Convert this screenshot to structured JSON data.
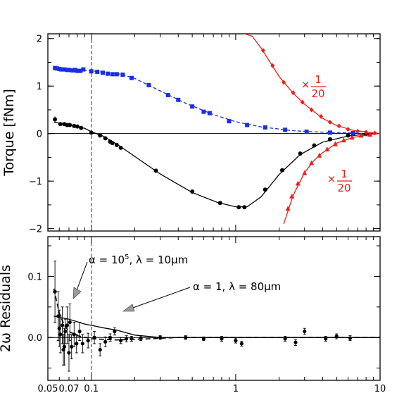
{
  "colors": {
    "black": "#000000",
    "blue": "#1a2fe0",
    "red": "#e8201a",
    "arrow": "#9a9a9a"
  },
  "chart_data": [
    {
      "type": "scatter",
      "panel": "top",
      "xscale": "log",
      "xlim": [
        0.05,
        10
      ],
      "ylim": [
        -2.05,
        2.1
      ],
      "ylabel": "Torque [fNm]",
      "yticks": [
        {
          "v": -2,
          "label": "−2"
        },
        {
          "v": -1,
          "label": "−1"
        },
        {
          "v": 0,
          "label": "0"
        },
        {
          "v": 1,
          "label": "1"
        },
        {
          "v": 2,
          "label": "2"
        }
      ],
      "vline": 0.1,
      "hline": 0,
      "grid": false,
      "scale_annotations": [
        {
          "prefix": "×",
          "num": "1",
          "den": "20",
          "near": "upper red series"
        },
        {
          "prefix": "×",
          "num": "1",
          "den": "20",
          "near": "lower red series"
        }
      ],
      "series": [
        {
          "color": "blue",
          "marker": "square",
          "line": "dashed",
          "points": [
            [
              0.056,
              1.38
            ],
            [
              0.058,
              1.37
            ],
            [
              0.06,
              1.36
            ],
            [
              0.062,
              1.35
            ],
            [
              0.065,
              1.35
            ],
            [
              0.068,
              1.34
            ],
            [
              0.07,
              1.34
            ],
            [
              0.074,
              1.33
            ],
            [
              0.077,
              1.34
            ],
            [
              0.08,
              1.32
            ],
            [
              0.084,
              1.32
            ],
            [
              0.088,
              1.35
            ],
            [
              0.1,
              1.31
            ],
            [
              0.11,
              1.3
            ],
            [
              0.12,
              1.28
            ],
            [
              0.13,
              1.26
            ],
            [
              0.14,
              1.25
            ],
            [
              0.15,
              1.25
            ],
            [
              0.165,
              1.24
            ],
            [
              0.19,
              1.17
            ],
            [
              0.25,
              1.02
            ],
            [
              0.34,
              0.81
            ],
            [
              0.4,
              0.71
            ],
            [
              0.5,
              0.57
            ],
            [
              0.6,
              0.46
            ],
            [
              0.66,
              0.43
            ],
            [
              0.9,
              0.26
            ],
            [
              1.2,
              0.18
            ],
            [
              1.6,
              0.13
            ],
            [
              2.2,
              0.08
            ],
            [
              3.1,
              0.04
            ],
            [
              4.5,
              0.02
            ],
            [
              6.5,
              0.01
            ]
          ],
          "fit": [
            [
              0.056,
              1.38
            ],
            [
              0.1,
              1.32
            ],
            [
              0.16,
              1.25
            ],
            [
              0.2,
              1.16
            ],
            [
              0.3,
              0.9
            ],
            [
              0.45,
              0.64
            ],
            [
              0.7,
              0.4
            ],
            [
              1.0,
              0.25
            ],
            [
              1.5,
              0.14
            ],
            [
              2.5,
              0.06
            ],
            [
              4,
              0.03
            ],
            [
              7,
              0.01
            ]
          ]
        },
        {
          "color": "black",
          "marker": "circle",
          "line": "solid",
          "points": [
            [
              0.056,
              0.3
            ],
            [
              0.061,
              0.2
            ],
            [
              0.065,
              0.2
            ],
            [
              0.068,
              0.18
            ],
            [
              0.071,
              0.18
            ],
            [
              0.076,
              0.16
            ],
            [
              0.08,
              0.15
            ],
            [
              0.085,
              0.12
            ],
            [
              0.1,
              0.02
            ],
            [
              0.115,
              -0.04
            ],
            [
              0.125,
              -0.1
            ],
            [
              0.135,
              -0.17
            ],
            [
              0.14,
              -0.2
            ],
            [
              0.15,
              -0.24
            ],
            [
              0.16,
              -0.3
            ],
            [
              0.28,
              -0.78
            ],
            [
              0.5,
              -1.22
            ],
            [
              0.78,
              -1.46
            ],
            [
              1.05,
              -1.55
            ],
            [
              1.15,
              -1.55
            ],
            [
              1.6,
              -1.18
            ],
            [
              2.1,
              -0.77
            ],
            [
              2.8,
              -0.42
            ],
            [
              3.5,
              -0.25
            ],
            [
              4.5,
              -0.12
            ],
            [
              6,
              -0.04
            ],
            [
              8,
              -0.01
            ]
          ],
          "fit": [
            [
              0.055,
              0.24
            ],
            [
              0.07,
              0.19
            ],
            [
              0.09,
              0.11
            ],
            [
              0.1,
              0.04
            ],
            [
              0.12,
              -0.05
            ],
            [
              0.15,
              -0.22
            ],
            [
              0.2,
              -0.48
            ],
            [
              0.3,
              -0.85
            ],
            [
              0.5,
              -1.24
            ],
            [
              0.75,
              -1.45
            ],
            [
              1.0,
              -1.54
            ],
            [
              1.2,
              -1.54
            ],
            [
              1.5,
              -1.33
            ],
            [
              2.0,
              -0.86
            ],
            [
              2.8,
              -0.44
            ],
            [
              4,
              -0.18
            ],
            [
              6,
              -0.05
            ],
            [
              9,
              0
            ]
          ]
        },
        {
          "color": "red",
          "marker": "diamond",
          "line": "solid",
          "points": [
            [
              1.55,
              1.75
            ],
            [
              1.8,
              1.43
            ],
            [
              2.15,
              1.08
            ],
            [
              2.5,
              0.86
            ],
            [
              2.9,
              0.66
            ],
            [
              3.35,
              0.5
            ],
            [
              3.9,
              0.36
            ],
            [
              4.5,
              0.24
            ],
            [
              5.2,
              0.16
            ],
            [
              6.0,
              0.09
            ],
            [
              7.0,
              0.05
            ],
            [
              8.0,
              0.03
            ],
            [
              9.2,
              0.01
            ]
          ],
          "fit": [
            [
              1.1,
              2.12
            ],
            [
              1.3,
              2.05
            ],
            [
              1.5,
              1.8
            ],
            [
              2.0,
              1.2
            ],
            [
              2.5,
              0.85
            ],
            [
              3.0,
              0.62
            ],
            [
              4.0,
              0.32
            ],
            [
              5.0,
              0.17
            ],
            [
              6.5,
              0.07
            ],
            [
              10,
              0
            ]
          ]
        },
        {
          "color": "red",
          "marker": "triangle",
          "line": "solid",
          "points": [
            [
              2.3,
              -1.58
            ],
            [
              2.45,
              -1.32
            ],
            [
              2.7,
              -1.05
            ],
            [
              3.0,
              -0.83
            ],
            [
              3.35,
              -0.62
            ],
            [
              3.8,
              -0.46
            ],
            [
              4.3,
              -0.33
            ],
            [
              4.9,
              -0.22
            ],
            [
              5.6,
              -0.14
            ],
            [
              6.4,
              -0.08
            ],
            [
              7.4,
              -0.04
            ],
            [
              8.5,
              -0.02
            ]
          ],
          "fit": [
            [
              2.15,
              -1.9
            ],
            [
              2.5,
              -1.3
            ],
            [
              3.0,
              -0.82
            ],
            [
              3.5,
              -0.56
            ],
            [
              4.0,
              -0.4
            ],
            [
              5.0,
              -0.2
            ],
            [
              6.5,
              -0.08
            ],
            [
              8.5,
              -0.02
            ],
            [
              10,
              0
            ]
          ]
        }
      ]
    },
    {
      "type": "scatter",
      "panel": "bottom",
      "xscale": "log",
      "xlim": [
        0.05,
        10
      ],
      "ylim": [
        -0.07,
        0.165
      ],
      "xticks": [
        {
          "v": 0.05,
          "label": "0.05"
        },
        {
          "v": 0.07,
          "label": "0.07"
        },
        {
          "v": 0.1,
          "label": "0.1"
        },
        {
          "v": 1,
          "label": "1"
        },
        {
          "v": 10,
          "label": "10"
        }
      ],
      "yticks": [
        {
          "v": 0.0,
          "label": "0.0"
        },
        {
          "v": 0.1,
          "label": "0.1"
        }
      ],
      "ylabel_visible": "2ω Residuals",
      "vline": 0.1,
      "hline": 0,
      "annotations": [
        {
          "text": "α = 10",
          "sup": "5",
          "rest": ",  λ = 10µm",
          "curve": "dashed"
        },
        {
          "text": "α = 1,  λ = 80µm",
          "curve": "solid"
        }
      ],
      "points": [
        [
          0.056,
          0.075,
          0.05
        ],
        [
          0.059,
          0.035,
          0.04
        ],
        [
          0.06,
          0.015,
          0.03
        ],
        [
          0.061,
          0.005,
          0.03
        ],
        [
          0.063,
          0.02,
          0.03
        ],
        [
          0.064,
          -0.02,
          0.025
        ],
        [
          0.065,
          -0.015,
          0.03
        ],
        [
          0.066,
          0.01,
          0.02
        ],
        [
          0.068,
          0.02,
          0.03
        ],
        [
          0.07,
          -0.025,
          0.03
        ],
        [
          0.071,
          0.025,
          0.03
        ],
        [
          0.073,
          -0.015,
          0.02
        ],
        [
          0.076,
          0.005,
          0.02
        ],
        [
          0.079,
          -0.01,
          0.015
        ],
        [
          0.083,
          0.01,
          0.015
        ],
        [
          0.087,
          -0.01,
          0.015
        ],
        [
          0.095,
          -0.005,
          0.012
        ],
        [
          0.105,
          0.0,
          0.01
        ],
        [
          0.115,
          -0.02,
          0.01
        ],
        [
          0.125,
          -0.007,
          0.008
        ],
        [
          0.135,
          0.0,
          0.006
        ],
        [
          0.145,
          0.01,
          0.006
        ],
        [
          0.16,
          -0.005,
          0.005
        ],
        [
          0.175,
          -0.002,
          0.005
        ],
        [
          0.19,
          -0.002,
          0.004
        ],
        [
          0.22,
          -0.001,
          0.004
        ],
        [
          0.3,
          0.0,
          0.003
        ],
        [
          0.45,
          0.0,
          0.003
        ],
        [
          0.6,
          -0.002,
          0.003
        ],
        [
          0.8,
          -0.002,
          0.004
        ],
        [
          1.0,
          -0.005,
          0.004
        ],
        [
          1.1,
          -0.01,
          0.004
        ],
        [
          2.2,
          -0.002,
          0.004
        ],
        [
          2.6,
          -0.008,
          0.005
        ],
        [
          3.0,
          0.01,
          0.005
        ],
        [
          4.2,
          -0.002,
          0.004
        ],
        [
          5.0,
          0.002,
          0.004
        ],
        [
          6.2,
          -0.001,
          0.004
        ]
      ],
      "curves": [
        {
          "style": "dashed",
          "points": [
            [
              0.055,
              0.08
            ],
            [
              0.06,
              0.04
            ],
            [
              0.065,
              0.02
            ],
            [
              0.07,
              0.01
            ],
            [
              0.08,
              0.003
            ],
            [
              0.1,
              -0.002
            ],
            [
              0.15,
              -0.004
            ],
            [
              0.25,
              -0.002
            ],
            [
              0.4,
              0
            ],
            [
              10,
              0
            ]
          ]
        },
        {
          "style": "solid",
          "points": [
            [
              0.055,
              0.035
            ],
            [
              0.07,
              0.03
            ],
            [
              0.09,
              0.022
            ],
            [
              0.1,
              0.02
            ],
            [
              0.12,
              0.016
            ],
            [
              0.15,
              0.012
            ],
            [
              0.2,
              0.004
            ],
            [
              0.3,
              0.0
            ],
            [
              0.5,
              0
            ],
            [
              10,
              0
            ]
          ]
        }
      ]
    }
  ]
}
